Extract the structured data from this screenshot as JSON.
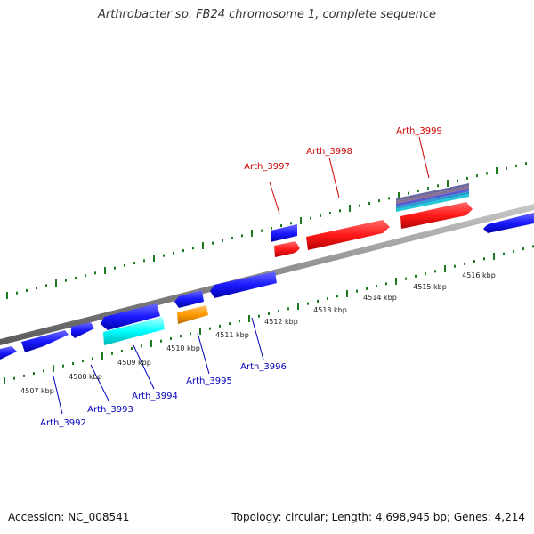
{
  "title": "Arthrobacter sp. FB24 chromosome 1, complete sequence",
  "footer": {
    "accession": "Accession: NC_008541",
    "topology": "Topology: circular; Length: 4,698,945 bp; Genes: 4,214"
  },
  "colors": {
    "forward_gene": "#ff1a1a",
    "reverse_gene": "#1a1aff",
    "highlight_gene": "#00ffff",
    "orange_gene": "#ff9900",
    "backbone": "#8c8c8c",
    "tick": "#1e7a1e",
    "forward_label": "#cc0000",
    "reverse_label": "#0000bb"
  },
  "scale_labels": [
    "4507 kbp",
    "4508 kbp",
    "4509 kbp",
    "4510 kbp",
    "4511 kbp",
    "4512 kbp",
    "4513 kbp",
    "4514 kbp",
    "4515 kbp",
    "4516 kbp"
  ],
  "forward_gene_labels": [
    "Arth_3997",
    "Arth_3998",
    "Arth_3999"
  ],
  "reverse_gene_labels": [
    "Arth_3992",
    "Arth_3993",
    "Arth_3994",
    "Arth_3995",
    "Arth_3996"
  ]
}
